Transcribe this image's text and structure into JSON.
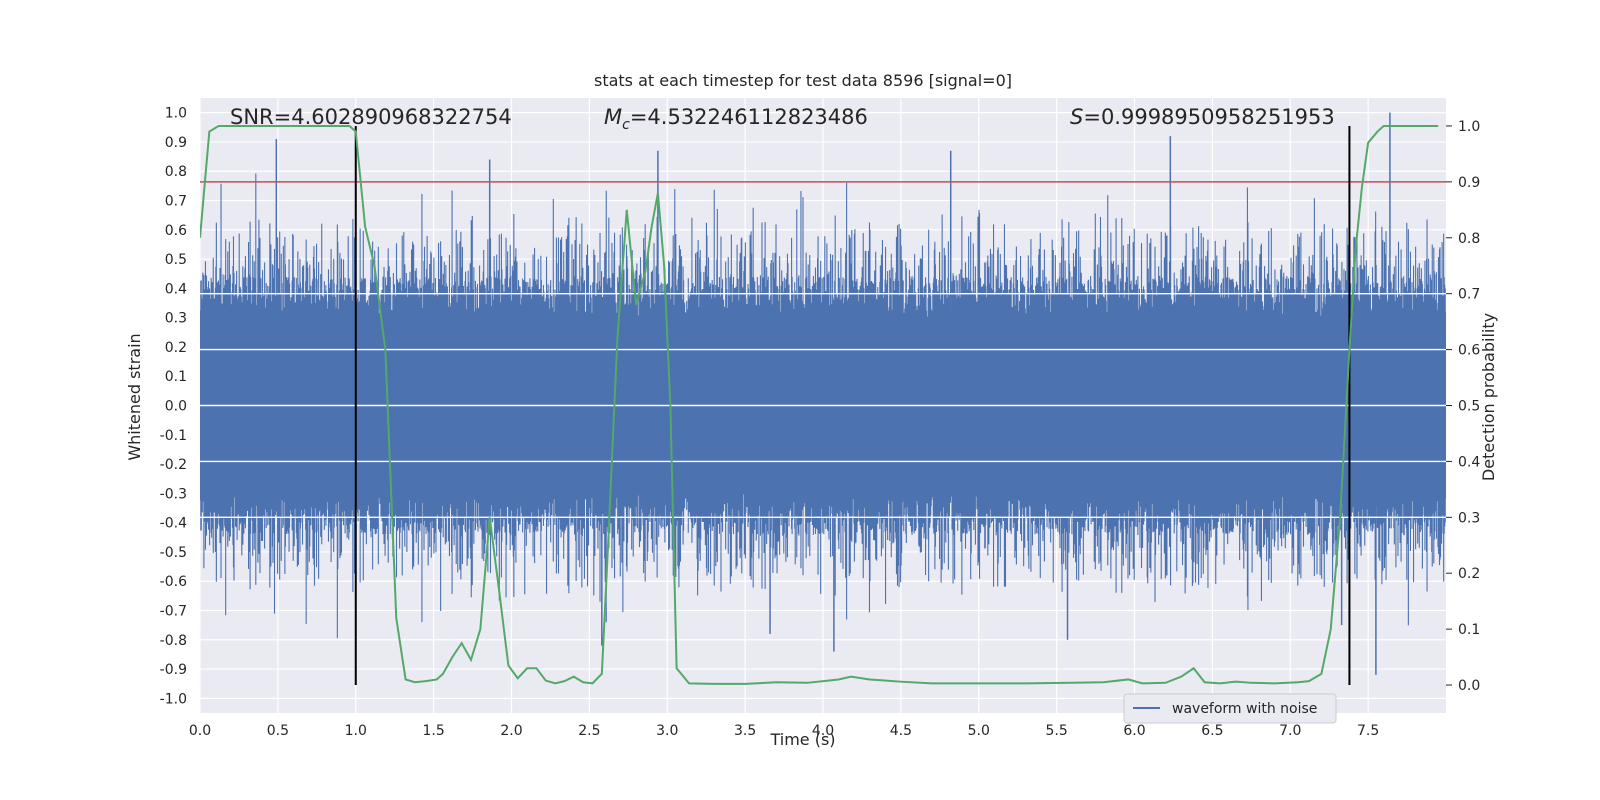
{
  "chart_data": {
    "type": "line",
    "title": "stats at each timestep for test data 8596 [signal=0]",
    "xlabel": "Time (s)",
    "ylabel_left": "Whitened strain",
    "ylabel_right": "Detection probability",
    "xlim": [
      0.0,
      8.0
    ],
    "ylim_left": [
      -1.05,
      1.05
    ],
    "ylim_right": [
      -0.05,
      1.05
    ],
    "x_ticks": [
      "0.0",
      "0.5",
      "1.0",
      "1.5",
      "2.0",
      "2.5",
      "3.0",
      "3.5",
      "4.0",
      "4.5",
      "5.0",
      "5.5",
      "6.0",
      "6.5",
      "7.0",
      "7.5"
    ],
    "y_ticks_left": [
      "-1.0",
      "-0.9",
      "-0.8",
      "-0.7",
      "-0.6",
      "-0.5",
      "-0.4",
      "-0.3",
      "-0.2",
      "-0.1",
      "0.0",
      "0.1",
      "0.2",
      "0.3",
      "0.4",
      "0.5",
      "0.6",
      "0.7",
      "0.8",
      "0.9",
      "1.0"
    ],
    "y_ticks_right": [
      "0.0",
      "0.1",
      "0.2",
      "0.3",
      "0.4",
      "0.5",
      "0.6",
      "0.7",
      "0.8",
      "0.9",
      "1.0"
    ],
    "annotations": {
      "snr": "SNR=4.602890968322754",
      "mc_symbol": "M",
      "mc_sub": "c",
      "mc_value": "=4.532246112823486",
      "s_symbol": "S",
      "s_value": "=0.9998950958251953"
    },
    "threshold": 0.9,
    "vertical_lines_x": [
      1.0,
      7.38
    ],
    "grid": true,
    "legend": {
      "position": "bottom-right",
      "entries": [
        "waveform with noise"
      ]
    },
    "series": [
      {
        "name": "waveform with noise",
        "axis": "left",
        "color": "#4c72b0",
        "description": "noise waveform, 8 s",
        "spikes": [
          {
            "x": 0.49,
            "y": 0.91
          },
          {
            "x": 1.86,
            "y": 0.84
          },
          {
            "x": 2.94,
            "y": 0.87
          },
          {
            "x": 4.82,
            "y": 0.87
          },
          {
            "x": 6.23,
            "y": 0.92
          },
          {
            "x": 7.64,
            "y": 1.0
          },
          {
            "x": 5.57,
            "y": -0.8
          },
          {
            "x": 4.07,
            "y": -0.84
          },
          {
            "x": 2.58,
            "y": -0.82
          },
          {
            "x": 7.55,
            "y": -0.92
          },
          {
            "x": 7.33,
            "y": -0.75
          },
          {
            "x": 3.66,
            "y": -0.78
          }
        ]
      },
      {
        "name": "",
        "axis": "right",
        "color": "#55a868",
        "x": [
          0.0,
          0.06,
          0.12,
          0.2,
          0.3,
          0.4,
          0.5,
          0.6,
          0.7,
          0.8,
          0.9,
          0.96,
          1.0,
          1.06,
          1.12,
          1.19,
          1.26,
          1.32,
          1.38,
          1.45,
          1.52,
          1.56,
          1.62,
          1.68,
          1.74,
          1.8,
          1.86,
          1.92,
          1.98,
          2.04,
          2.1,
          2.16,
          2.22,
          2.28,
          2.34,
          2.4,
          2.46,
          2.52,
          2.58,
          2.62,
          2.68,
          2.74,
          2.8,
          2.86,
          2.9,
          2.94,
          2.98,
          3.02,
          3.06,
          3.14,
          3.3,
          3.5,
          3.7,
          3.9,
          4.1,
          4.18,
          4.3,
          4.5,
          4.7,
          5.0,
          5.3,
          5.6,
          5.8,
          5.96,
          6.05,
          6.2,
          6.3,
          6.38,
          6.45,
          6.55,
          6.65,
          6.75,
          6.9,
          7.05,
          7.12,
          7.2,
          7.26,
          7.32,
          7.38,
          7.42,
          7.46,
          7.5,
          7.56,
          7.6,
          7.7,
          7.8,
          7.85,
          7.95
        ],
        "y": [
          0.8,
          0.99,
          1.0,
          1.0,
          1.0,
          1.0,
          1.0,
          1.0,
          1.0,
          1.0,
          1.0,
          1.0,
          0.99,
          0.82,
          0.75,
          0.6,
          0.12,
          0.01,
          0.005,
          0.007,
          0.01,
          0.02,
          0.05,
          0.075,
          0.045,
          0.1,
          0.3,
          0.17,
          0.035,
          0.012,
          0.03,
          0.03,
          0.008,
          0.003,
          0.007,
          0.015,
          0.005,
          0.003,
          0.02,
          0.25,
          0.62,
          0.85,
          0.68,
          0.74,
          0.82,
          0.88,
          0.75,
          0.5,
          0.03,
          0.003,
          0.002,
          0.002,
          0.005,
          0.004,
          0.01,
          0.015,
          0.01,
          0.006,
          0.003,
          0.003,
          0.003,
          0.004,
          0.005,
          0.01,
          0.003,
          0.004,
          0.015,
          0.03,
          0.005,
          0.003,
          0.006,
          0.004,
          0.003,
          0.005,
          0.007,
          0.02,
          0.1,
          0.3,
          0.6,
          0.78,
          0.89,
          0.97,
          0.99,
          1.0,
          1.0,
          1.0,
          1.0,
          1.0
        ]
      }
    ]
  }
}
